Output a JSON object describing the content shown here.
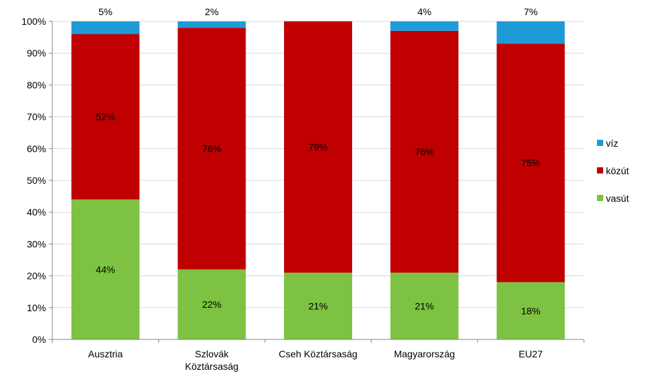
{
  "chart_data": {
    "type": "bar",
    "stacked": true,
    "percent_stacked": true,
    "categories": [
      "Ausztria",
      "Szlovák Köztársaság",
      "Cseh Köztársaság",
      "Magyarország",
      "EU27"
    ],
    "category_lines": [
      [
        "Ausztria"
      ],
      [
        "Szlovák",
        "Köztársaság"
      ],
      [
        "Cseh Köztársaság"
      ],
      [
        "Magyarország"
      ],
      [
        "EU27"
      ]
    ],
    "series": [
      {
        "name": "vasút",
        "color": "#7dc242",
        "values": [
          44,
          22,
          21,
          21,
          18
        ],
        "labels": [
          "44%",
          "22%",
          "21%",
          "21%",
          "18%"
        ]
      },
      {
        "name": "közút",
        "color": "#c00000",
        "values": [
          52,
          76,
          79,
          76,
          75
        ],
        "labels": [
          "52%",
          "76%",
          "79%",
          "76%",
          "75%"
        ]
      },
      {
        "name": "víz",
        "color": "#1e9bd7",
        "values": [
          5,
          2,
          0,
          4,
          7
        ],
        "labels": [
          "5%",
          "2%",
          "",
          "4%",
          "7%"
        ]
      }
    ],
    "ylim": [
      0,
      100
    ],
    "yticks": [
      "0%",
      "10%",
      "20%",
      "30%",
      "40%",
      "50%",
      "60%",
      "70%",
      "80%",
      "90%",
      "100%"
    ],
    "grid": true,
    "legend": {
      "position": "right",
      "order": [
        "víz",
        "közút",
        "vasút"
      ]
    }
  }
}
